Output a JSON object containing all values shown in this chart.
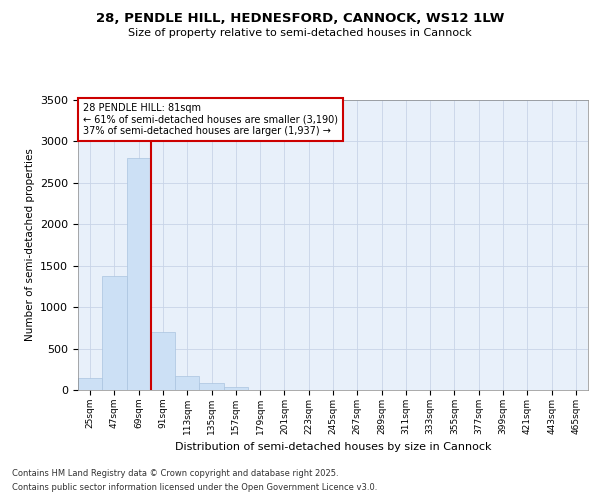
{
  "title_line1": "28, PENDLE HILL, HEDNESFORD, CANNOCK, WS12 1LW",
  "title_line2": "Size of property relative to semi-detached houses in Cannock",
  "xlabel": "Distribution of semi-detached houses by size in Cannock",
  "ylabel": "Number of semi-detached properties",
  "bin_labels": [
    "25sqm",
    "47sqm",
    "69sqm",
    "91sqm",
    "113sqm",
    "135sqm",
    "157sqm",
    "179sqm",
    "201sqm",
    "223sqm",
    "245sqm",
    "267sqm",
    "289sqm",
    "311sqm",
    "333sqm",
    "355sqm",
    "377sqm",
    "399sqm",
    "421sqm",
    "443sqm",
    "465sqm"
  ],
  "bin_values": [
    140,
    1380,
    2800,
    700,
    165,
    90,
    35,
    0,
    0,
    0,
    0,
    0,
    0,
    0,
    0,
    0,
    0,
    0,
    0,
    0,
    0
  ],
  "property_bin_index": 2.5,
  "annotation_title": "28 PENDLE HILL: 81sqm",
  "annotation_line2": "← 61% of semi-detached houses are smaller (3,190)",
  "annotation_line3": "37% of semi-detached houses are larger (1,937) →",
  "ylim": [
    0,
    3500
  ],
  "bar_color": "#cce0f5",
  "bar_edge_color": "#aac4e0",
  "vline_color": "#cc0000",
  "grid_color": "#c8d4e8",
  "background_color": "#e8f0fa",
  "annotation_box_color": "#cc0000",
  "footer_line1": "Contains HM Land Registry data © Crown copyright and database right 2025.",
  "footer_line2": "Contains public sector information licensed under the Open Government Licence v3.0."
}
